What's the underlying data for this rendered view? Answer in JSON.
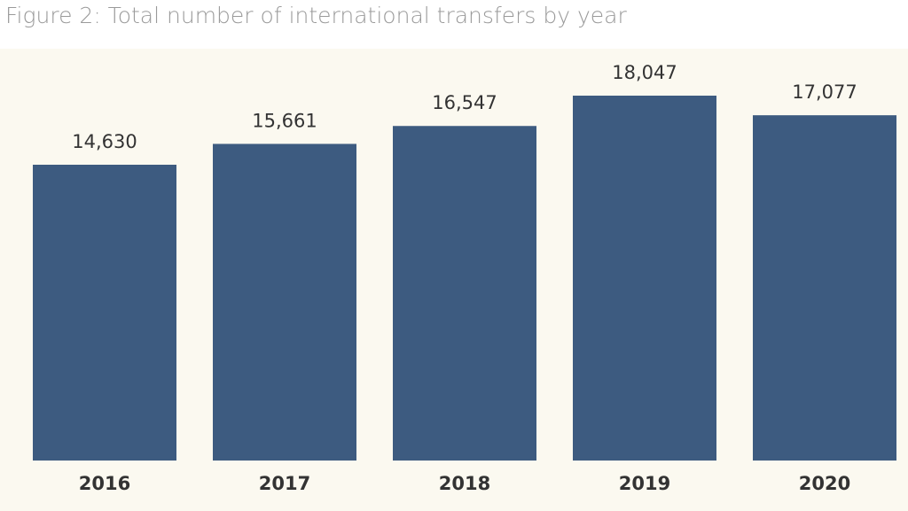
{
  "chart_data": {
    "type": "bar",
    "title": "Figure 2: Total number of international transfers by year",
    "categories": [
      "2016",
      "2017",
      "2018",
      "2019",
      "2020"
    ],
    "values": [
      14630,
      15661,
      16547,
      18047,
      17077
    ],
    "value_labels": [
      "14,630",
      "15,661",
      "16,547",
      "18,047",
      "17,077"
    ],
    "color": "#3d5b80"
  }
}
